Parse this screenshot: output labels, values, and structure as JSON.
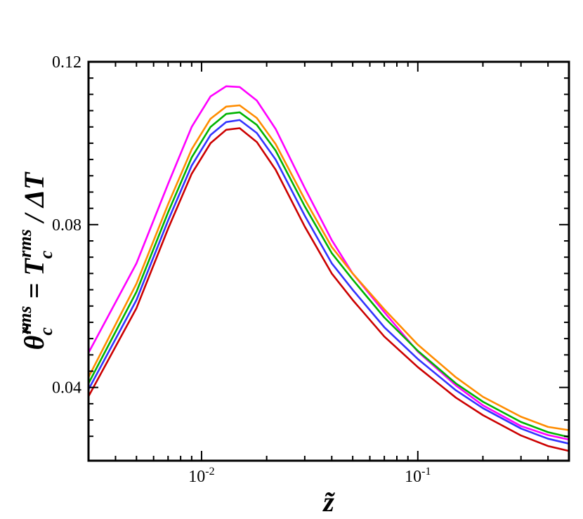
{
  "chart_data": {
    "type": "line",
    "title": "",
    "xlabel": "z̃",
    "ylabel_parts": {
      "lhs": "θ̃",
      "lhs_sub": "c",
      "lhs_sup": "rms",
      "eq": " = ",
      "rhs": "T",
      "rhs_sub": "c",
      "rhs_sup": "rms",
      "tail": " / ΔT"
    },
    "xscale": "log",
    "xlim": [
      0.003,
      0.5
    ],
    "ylim": [
      0.022,
      0.12
    ],
    "grid": false,
    "legend": "none",
    "x_ticks": [
      {
        "value": 0.01,
        "base": "10",
        "exp": "-2"
      },
      {
        "value": 0.1,
        "base": "10",
        "exp": "-1"
      }
    ],
    "y_ticks": [
      {
        "value": 0.04,
        "label": "0.04"
      },
      {
        "value": 0.08,
        "label": "0.08"
      },
      {
        "value": 0.12,
        "label": "0.12"
      }
    ],
    "y_minor_ticks": [
      0.028,
      0.032,
      0.036,
      0.044,
      0.048,
      0.052,
      0.056,
      0.06,
      0.064,
      0.068,
      0.072,
      0.076,
      0.084,
      0.088,
      0.092,
      0.096,
      0.1,
      0.104,
      0.108,
      0.112,
      0.116
    ],
    "series": [
      {
        "color": "#ff00ff",
        "x": [
          0.003,
          0.005,
          0.007,
          0.009,
          0.011,
          0.013,
          0.015,
          0.018,
          0.022,
          0.03,
          0.04,
          0.05,
          0.07,
          0.1,
          0.15,
          0.2,
          0.3,
          0.4,
          0.5
        ],
        "y": [
          0.0485,
          0.0705,
          0.09,
          0.104,
          0.1115,
          0.114,
          0.1138,
          0.1105,
          0.1035,
          0.089,
          0.0762,
          0.068,
          0.0585,
          0.0488,
          0.0405,
          0.0356,
          0.0305,
          0.0283,
          0.0272
        ]
      },
      {
        "color": "#ff8c00",
        "x": [
          0.003,
          0.005,
          0.007,
          0.009,
          0.011,
          0.013,
          0.015,
          0.018,
          0.022,
          0.03,
          0.04,
          0.05,
          0.07,
          0.1,
          0.15,
          0.2,
          0.3,
          0.4,
          0.5
        ],
        "y": [
          0.0425,
          0.0655,
          0.085,
          0.0985,
          0.106,
          0.109,
          0.1093,
          0.1062,
          0.0998,
          0.0862,
          0.0745,
          0.068,
          0.0592,
          0.0505,
          0.0425,
          0.0377,
          0.0328,
          0.0303,
          0.0295
        ]
      },
      {
        "color": "#00b400",
        "x": [
          0.003,
          0.005,
          0.007,
          0.009,
          0.011,
          0.013,
          0.015,
          0.018,
          0.022,
          0.03,
          0.04,
          0.05,
          0.07,
          0.1,
          0.15,
          0.2,
          0.3,
          0.4,
          0.5
        ],
        "y": [
          0.041,
          0.0635,
          0.083,
          0.0965,
          0.104,
          0.1072,
          0.1076,
          0.1045,
          0.0982,
          0.0845,
          0.073,
          0.0665,
          0.0572,
          0.049,
          0.041,
          0.0365,
          0.0315,
          0.029,
          0.0278
        ]
      },
      {
        "color": "#3333ff",
        "x": [
          0.003,
          0.005,
          0.007,
          0.009,
          0.011,
          0.013,
          0.015,
          0.018,
          0.022,
          0.03,
          0.04,
          0.05,
          0.07,
          0.1,
          0.15,
          0.2,
          0.3,
          0.4,
          0.5
        ],
        "y": [
          0.0395,
          0.0615,
          0.081,
          0.0945,
          0.102,
          0.1052,
          0.1057,
          0.1025,
          0.096,
          0.0822,
          0.0705,
          0.064,
          0.0548,
          0.047,
          0.0393,
          0.0349,
          0.0299,
          0.0274,
          0.0262
        ]
      },
      {
        "color": "#cc0000",
        "x": [
          0.003,
          0.005,
          0.007,
          0.009,
          0.011,
          0.013,
          0.015,
          0.018,
          0.022,
          0.03,
          0.04,
          0.05,
          0.07,
          0.1,
          0.15,
          0.2,
          0.3,
          0.4,
          0.5
        ],
        "y": [
          0.0378,
          0.0595,
          0.079,
          0.0925,
          0.1,
          0.1033,
          0.1037,
          0.1003,
          0.0935,
          0.0795,
          0.068,
          0.0615,
          0.0525,
          0.045,
          0.0375,
          0.0332,
          0.0282,
          0.0256,
          0.0244
        ]
      }
    ]
  }
}
